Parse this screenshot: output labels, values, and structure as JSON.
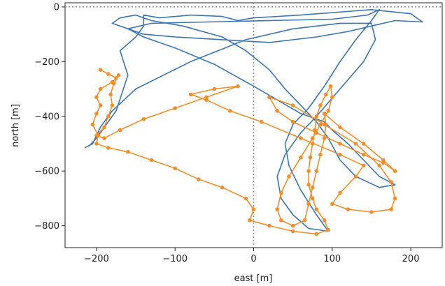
{
  "chart_data": {
    "type": "line",
    "title": "",
    "xlabel": "east [m]",
    "ylabel": "north [m]",
    "xlim": [
      -240,
      240
    ],
    "ylim": [
      -880,
      15
    ],
    "xticks": [
      -200,
      -100,
      0,
      100,
      200
    ],
    "yticks": [
      0,
      -200,
      -400,
      -600,
      -800
    ],
    "xtick_labels": [
      "−200",
      "−100",
      "0",
      "100",
      "200"
    ],
    "ytick_labels": [
      "0",
      "−200",
      "−400",
      "−600",
      "−800"
    ],
    "reference_lines": {
      "x": 0,
      "y": 0,
      "style": "dotted",
      "color": "#888888"
    },
    "grid": false,
    "legend": "none",
    "series": [
      {
        "color": "#3b75af",
        "marker": "none",
        "points": [
          [
            -210,
            -510
          ],
          [
            -200,
            -480
          ],
          [
            -175,
            -380
          ],
          [
            -160,
            -250
          ],
          [
            -170,
            -160
          ],
          [
            -150,
            -110
          ],
          [
            -140,
            -70
          ],
          [
            -140,
            -30
          ],
          [
            -120,
            -40
          ],
          [
            -80,
            -30
          ],
          [
            -40,
            -35
          ],
          [
            -20,
            -50
          ],
          [
            0,
            -40
          ],
          [
            60,
            -30
          ],
          [
            150,
            -10
          ],
          [
            200,
            -25
          ],
          [
            215,
            -55
          ],
          [
            180,
            -50
          ],
          [
            150,
            -70
          ],
          [
            120,
            -90
          ],
          [
            80,
            -110
          ],
          [
            20,
            -130
          ],
          [
            -40,
            -120
          ],
          [
            -100,
            -110
          ],
          [
            -140,
            -100
          ],
          [
            -180,
            -60
          ],
          [
            -170,
            -40
          ],
          [
            -150,
            -30
          ],
          [
            -130,
            -50
          ],
          [
            -90,
            -70
          ],
          [
            -40,
            -110
          ],
          [
            -10,
            -160
          ],
          [
            20,
            -230
          ],
          [
            40,
            -300
          ],
          [
            60,
            -360
          ],
          [
            80,
            -420
          ],
          [
            95,
            -480
          ],
          [
            110,
            -560
          ],
          [
            130,
            -620
          ],
          [
            160,
            -660
          ],
          [
            180,
            -650
          ],
          [
            160,
            -620
          ],
          [
            140,
            -560
          ],
          [
            120,
            -500
          ],
          [
            100,
            -450
          ],
          [
            90,
            -420
          ],
          [
            60,
            -390
          ],
          [
            30,
            -340
          ],
          [
            0,
            -290
          ],
          [
            -50,
            -210
          ],
          [
            -100,
            -150
          ],
          [
            -140,
            -110
          ],
          [
            -160,
            -80
          ],
          [
            -130,
            -60
          ],
          [
            -60,
            -55
          ],
          [
            20,
            -50
          ],
          [
            100,
            -45
          ],
          [
            145,
            -30
          ],
          [
            160,
            -10
          ],
          [
            150,
            -50
          ],
          [
            130,
            -120
          ],
          [
            110,
            -200
          ],
          [
            90,
            -290
          ],
          [
            70,
            -370
          ],
          [
            50,
            -430
          ],
          [
            40,
            -500
          ],
          [
            45,
            -580
          ],
          [
            60,
            -670
          ],
          [
            80,
            -760
          ],
          [
            95,
            -820
          ],
          [
            70,
            -810
          ],
          [
            50,
            -760
          ],
          [
            35,
            -700
          ],
          [
            30,
            -620
          ],
          [
            40,
            -540
          ],
          [
            60,
            -460
          ],
          [
            80,
            -400
          ],
          [
            110,
            -300
          ],
          [
            140,
            -200
          ],
          [
            155,
            -120
          ],
          [
            150,
            -60
          ],
          [
            110,
            -60
          ],
          [
            50,
            -80
          ],
          [
            -10,
            -120
          ],
          [
            -80,
            -200
          ],
          [
            -150,
            -300
          ],
          [
            -180,
            -380
          ],
          [
            -195,
            -440
          ],
          [
            -205,
            -500
          ],
          [
            -215,
            -515
          ]
        ]
      },
      {
        "color": "#f28e2b",
        "marker": "circle",
        "points": [
          [
            -195,
            -230
          ],
          [
            -185,
            -245
          ],
          [
            -175,
            -260
          ],
          [
            -180,
            -275
          ],
          [
            -195,
            -300
          ],
          [
            -200,
            -330
          ],
          [
            -195,
            -360
          ],
          [
            -200,
            -390
          ],
          [
            -205,
            -430
          ],
          [
            -198,
            -470
          ],
          [
            -200,
            -500
          ],
          [
            -185,
            -515
          ],
          [
            -160,
            -530
          ],
          [
            -130,
            -560
          ],
          [
            -100,
            -590
          ],
          [
            -70,
            -630
          ],
          [
            -40,
            -660
          ],
          [
            -10,
            -700
          ],
          [
            0,
            -740
          ],
          [
            -5,
            -780
          ],
          [
            20,
            -800
          ],
          [
            50,
            -820
          ],
          [
            80,
            -830
          ],
          [
            95,
            -815
          ],
          [
            90,
            -780
          ],
          [
            80,
            -740
          ],
          [
            75,
            -700
          ],
          [
            70,
            -650
          ],
          [
            70,
            -600
          ],
          [
            72,
            -550
          ],
          [
            75,
            -500
          ],
          [
            78,
            -450
          ],
          [
            80,
            -400
          ],
          [
            85,
            -360
          ],
          [
            92,
            -320
          ],
          [
            98,
            -290
          ],
          [
            100,
            -330
          ],
          [
            95,
            -380
          ],
          [
            85,
            -430
          ],
          [
            75,
            -480
          ],
          [
            60,
            -550
          ],
          [
            45,
            -620
          ],
          [
            35,
            -680
          ],
          [
            30,
            -740
          ],
          [
            35,
            -780
          ],
          [
            50,
            -800
          ],
          [
            65,
            -780
          ],
          [
            70,
            -720
          ],
          [
            75,
            -660
          ],
          [
            80,
            -600
          ],
          [
            85,
            -540
          ],
          [
            90,
            -480
          ],
          [
            92,
            -430
          ],
          [
            90,
            -390
          ],
          [
            110,
            -440
          ],
          [
            140,
            -500
          ],
          [
            165,
            -560
          ],
          [
            180,
            -600
          ],
          [
            165,
            -570
          ],
          [
            140,
            -540
          ],
          [
            110,
            -500
          ],
          [
            80,
            -460
          ],
          [
            50,
            -420
          ],
          [
            30,
            -380
          ],
          [
            20,
            -330
          ],
          [
            50,
            -360
          ],
          [
            90,
            -430
          ],
          [
            130,
            -500
          ],
          [
            160,
            -580
          ],
          [
            175,
            -640
          ],
          [
            180,
            -700
          ],
          [
            175,
            -740
          ],
          [
            150,
            -750
          ],
          [
            120,
            -740
          ],
          [
            100,
            -720
          ],
          [
            110,
            -680
          ],
          [
            130,
            -620
          ],
          [
            140,
            -580
          ],
          [
            110,
            -540
          ],
          [
            60,
            -480
          ],
          [
            10,
            -420
          ],
          [
            -30,
            -380
          ],
          [
            -60,
            -340
          ],
          [
            -80,
            -320
          ],
          [
            -50,
            -300
          ],
          [
            -20,
            -290
          ],
          [
            -60,
            -330
          ],
          [
            -100,
            -370
          ],
          [
            -140,
            -410
          ],
          [
            -170,
            -450
          ],
          [
            -190,
            -480
          ],
          [
            -200,
            -470
          ],
          [
            -190,
            -440
          ],
          [
            -185,
            -400
          ],
          [
            -180,
            -360
          ],
          [
            -182,
            -320
          ],
          [
            -178,
            -280
          ],
          [
            -172,
            -250
          ]
        ]
      }
    ]
  }
}
